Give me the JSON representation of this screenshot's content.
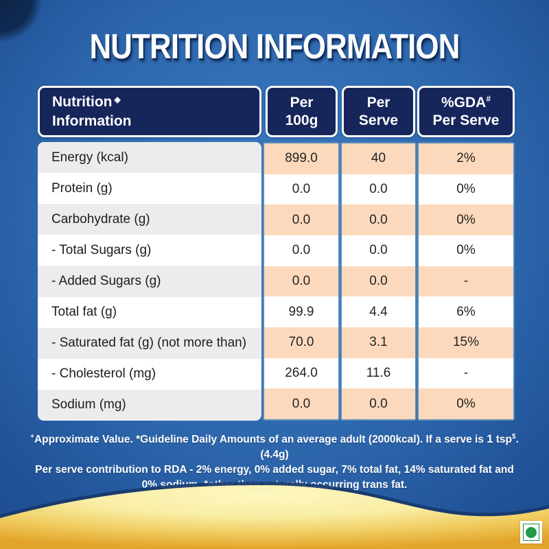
{
  "title": "NUTRITION INFORMATION",
  "table": {
    "header": {
      "nutrition_line1": "Nutrition",
      "nutrition_icon": "◈",
      "nutrition_line2": "Information",
      "per_100g_line1": "Per",
      "per_100g_line2": "100g",
      "per_serve_line1": "Per",
      "per_serve_line2": "Serve",
      "gda_base": "%GDA",
      "gda_sup": "#",
      "gda_line2": "Per Serve"
    },
    "rows": [
      {
        "label": "Energy (kcal)",
        "per_100g": "899.0",
        "per_serve": "40",
        "gda_per_serve": "2%"
      },
      {
        "label": "Protein (g)",
        "per_100g": "0.0",
        "per_serve": "0.0",
        "gda_per_serve": "0%"
      },
      {
        "label": "Carbohydrate (g)",
        "per_100g": "0.0",
        "per_serve": "0.0",
        "gda_per_serve": "0%"
      },
      {
        "label": "- Total Sugars (g)",
        "per_100g": "0.0",
        "per_serve": "0.0",
        "gda_per_serve": "0%"
      },
      {
        "label": "- Added Sugars (g)",
        "per_100g": "0.0",
        "per_serve": "0.0",
        "gda_per_serve": "-"
      },
      {
        "label": "Total fat (g)",
        "per_100g": "99.9",
        "per_serve": "4.4",
        "gda_per_serve": "6%"
      },
      {
        "label": "- Saturated fat (g) (not more than)",
        "per_100g": "70.0",
        "per_serve": "3.1",
        "gda_per_serve": "15%"
      },
      {
        "label": "- Cholesterol (mg)",
        "per_100g": "264.0",
        "per_serve": "11.6",
        "gda_per_serve": "-"
      },
      {
        "label": "Sodium (mg)",
        "per_100g": "0.0",
        "per_serve": "0.0",
        "gda_per_serve": "0%"
      }
    ]
  },
  "footnote": {
    "sup1": "+",
    "part1": "Approximate Value. *Guideline Daily Amounts of an average adult (2000kcal). If a serve is ",
    "bold1": "1",
    "part2": " tsp",
    "sup2": "$",
    "part3": ".(4.4g)",
    "line2": "Per serve contribution to RDA - 2% energy, 0% added sugar, 7% total fat, 14% saturated fat and",
    "line3": "0% sodium. *other than naturally occurring trans fat."
  },
  "colors": {
    "background_blue_center": "#3d79c0",
    "background_blue_edge": "#1d4c8d",
    "corner_navy": "#0d2347",
    "header_navy": "#16255a",
    "row_shade_gray": "#ececec",
    "row_shade_peach": "#fcd9bd",
    "column_border_blue": "#5b8cb8",
    "wave_gold_dark": "#e2a42a",
    "wave_gold_light": "#fdf7c1",
    "wave_shadow_navy": "#17396c",
    "veg_mark_green": "#1f9b4a",
    "text_dark": "#1c1c1c",
    "text_white": "#ffffff"
  }
}
